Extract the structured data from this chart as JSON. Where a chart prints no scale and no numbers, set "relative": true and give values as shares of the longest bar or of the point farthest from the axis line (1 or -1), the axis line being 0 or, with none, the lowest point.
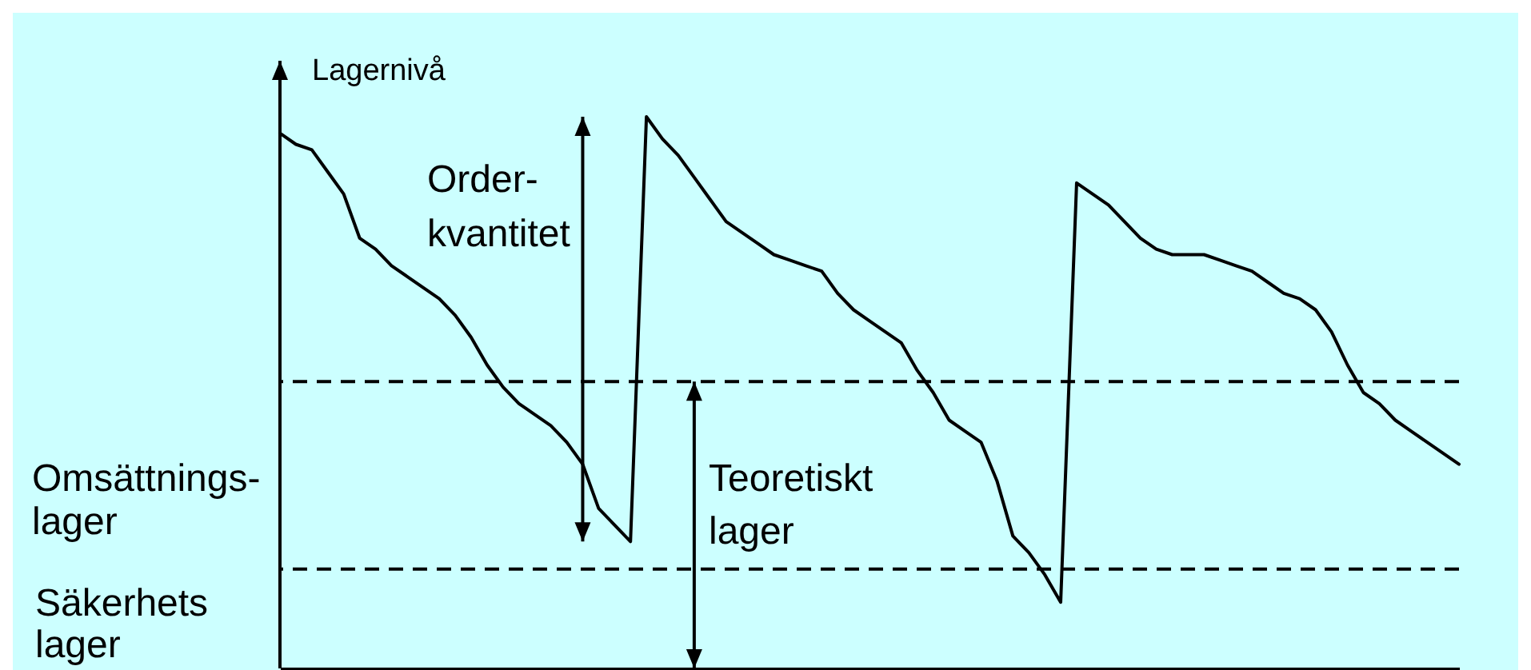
{
  "chart_data": {
    "type": "line",
    "relative": true,
    "ylabel": "Lagernivå",
    "color": "#000000",
    "categories": [
      null,
      null,
      null,
      null,
      null,
      null,
      null,
      null,
      null,
      null,
      null,
      null,
      null,
      null,
      null,
      null,
      null,
      null,
      null,
      null,
      null,
      null,
      null,
      null,
      null,
      null,
      null,
      null,
      null,
      null,
      null,
      null,
      null,
      null,
      null,
      null,
      null,
      null,
      null,
      null,
      null,
      null,
      null,
      null,
      null,
      null,
      null,
      null,
      null,
      null,
      null,
      null,
      null,
      null,
      null,
      null,
      null,
      null,
      null,
      null,
      null,
      null,
      null,
      null,
      null,
      null,
      null,
      null,
      null,
      null,
      null,
      null,
      null,
      null,
      null
    ],
    "values": [
      0.97,
      0.95,
      0.94,
      0.9,
      0.86,
      0.78,
      0.76,
      0.73,
      0.71,
      0.69,
      0.67,
      0.64,
      0.6,
      0.55,
      0.51,
      0.48,
      0.46,
      0.44,
      0.41,
      0.37,
      0.29,
      0.26,
      0.23,
      1.0,
      0.96,
      0.93,
      0.89,
      0.85,
      0.81,
      0.79,
      0.77,
      0.75,
      0.74,
      0.73,
      0.72,
      0.68,
      0.65,
      0.63,
      0.61,
      0.59,
      0.54,
      0.5,
      0.45,
      0.43,
      0.41,
      0.34,
      0.24,
      0.21,
      0.17,
      0.12,
      0.88,
      0.86,
      0.84,
      0.81,
      0.78,
      0.76,
      0.75,
      0.75,
      0.75,
      0.74,
      0.73,
      0.72,
      0.7,
      0.68,
      0.67,
      0.65,
      0.61,
      0.55,
      0.5,
      0.48,
      0.45,
      0.43,
      0.41,
      0.39,
      0.37
    ],
    "ref_lines": [
      {
        "axis": "y",
        "value": 0.52,
        "line_style": "dashed"
      },
      {
        "axis": "y",
        "value": 0.18,
        "line_style": "dashed"
      }
    ],
    "annotations": [
      "Order-\nkvantitet",
      "Teoretiskt\nlager",
      "Omsättnings-\nlager",
      "Säkerhets\nlager"
    ]
  }
}
